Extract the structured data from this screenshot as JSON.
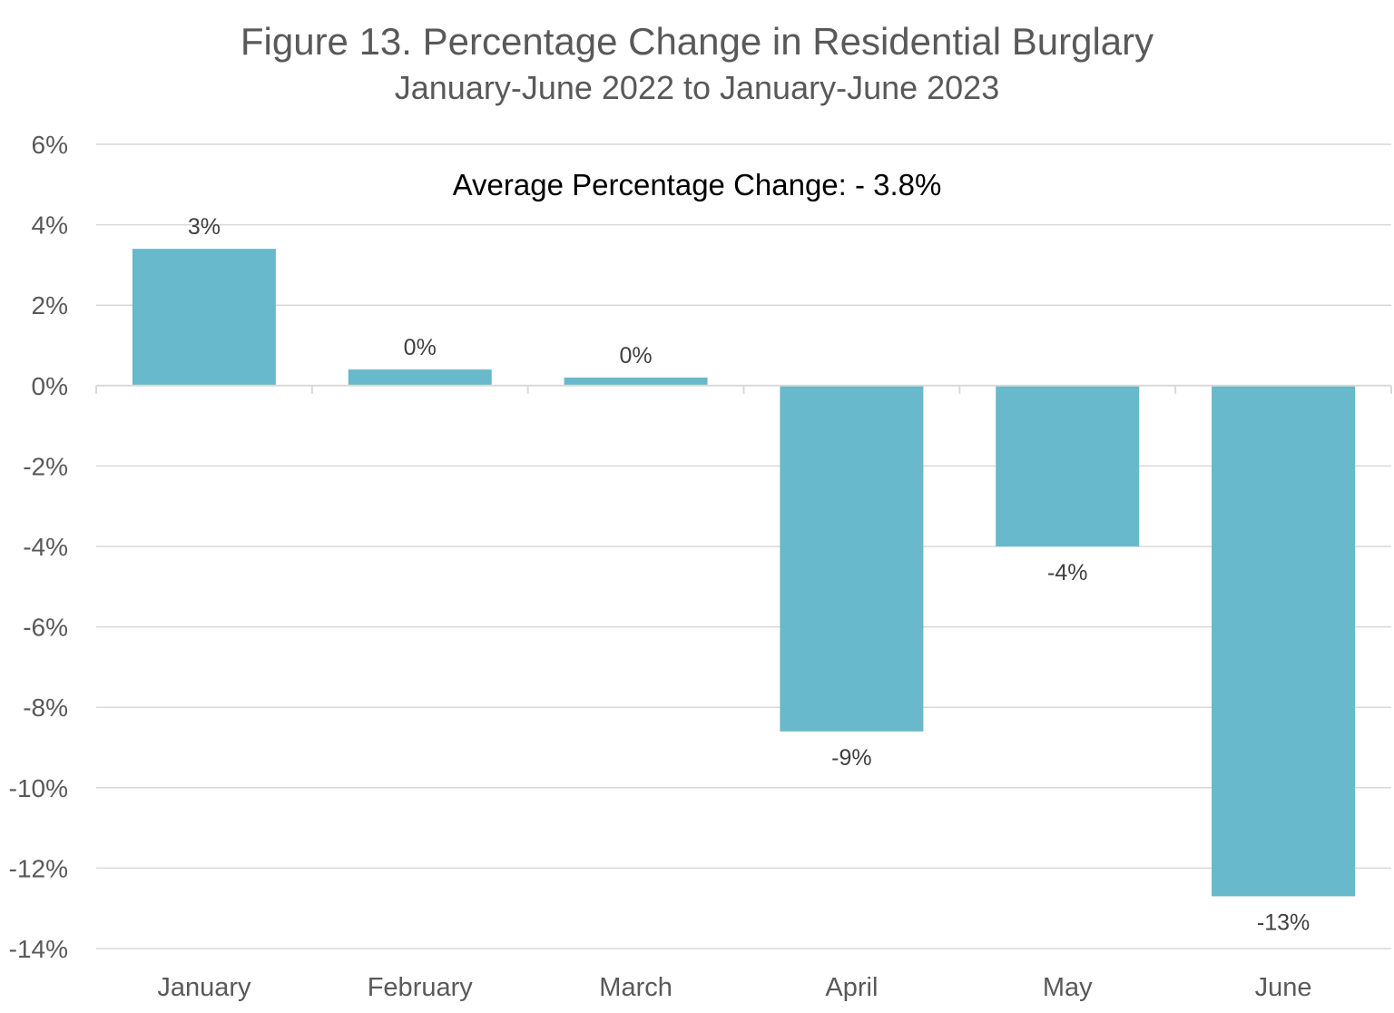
{
  "chart_data": {
    "type": "bar",
    "title": "Figure 13. Percentage Change in Residential Burglary",
    "subtitle": "January-June 2022 to January-June 2023",
    "annotation": "Average Percentage Change: - 3.8%",
    "categories": [
      "January",
      "February",
      "March",
      "April",
      "May",
      "June"
    ],
    "values": [
      3.4,
      0.4,
      0.2,
      -8.6,
      -4.0,
      -12.7
    ],
    "data_labels": [
      "3%",
      "0%",
      "0%",
      "-9%",
      "-4%",
      "-13%"
    ],
    "yticks": [
      "6%",
      "4%",
      "2%",
      "0%",
      "-2%",
      "-4%",
      "-6%",
      "-8%",
      "-10%",
      "-12%",
      "-14%"
    ],
    "ytick_values": [
      6,
      4,
      2,
      0,
      -2,
      -4,
      -6,
      -8,
      -10,
      -12,
      -14
    ],
    "ylim": [
      -14,
      6
    ],
    "xlabel": "",
    "ylabel": "",
    "grid": true,
    "legend": "none",
    "colors": {
      "bar": "#67b9cb",
      "grid": "#d9d9d9",
      "text": "#595959"
    }
  }
}
